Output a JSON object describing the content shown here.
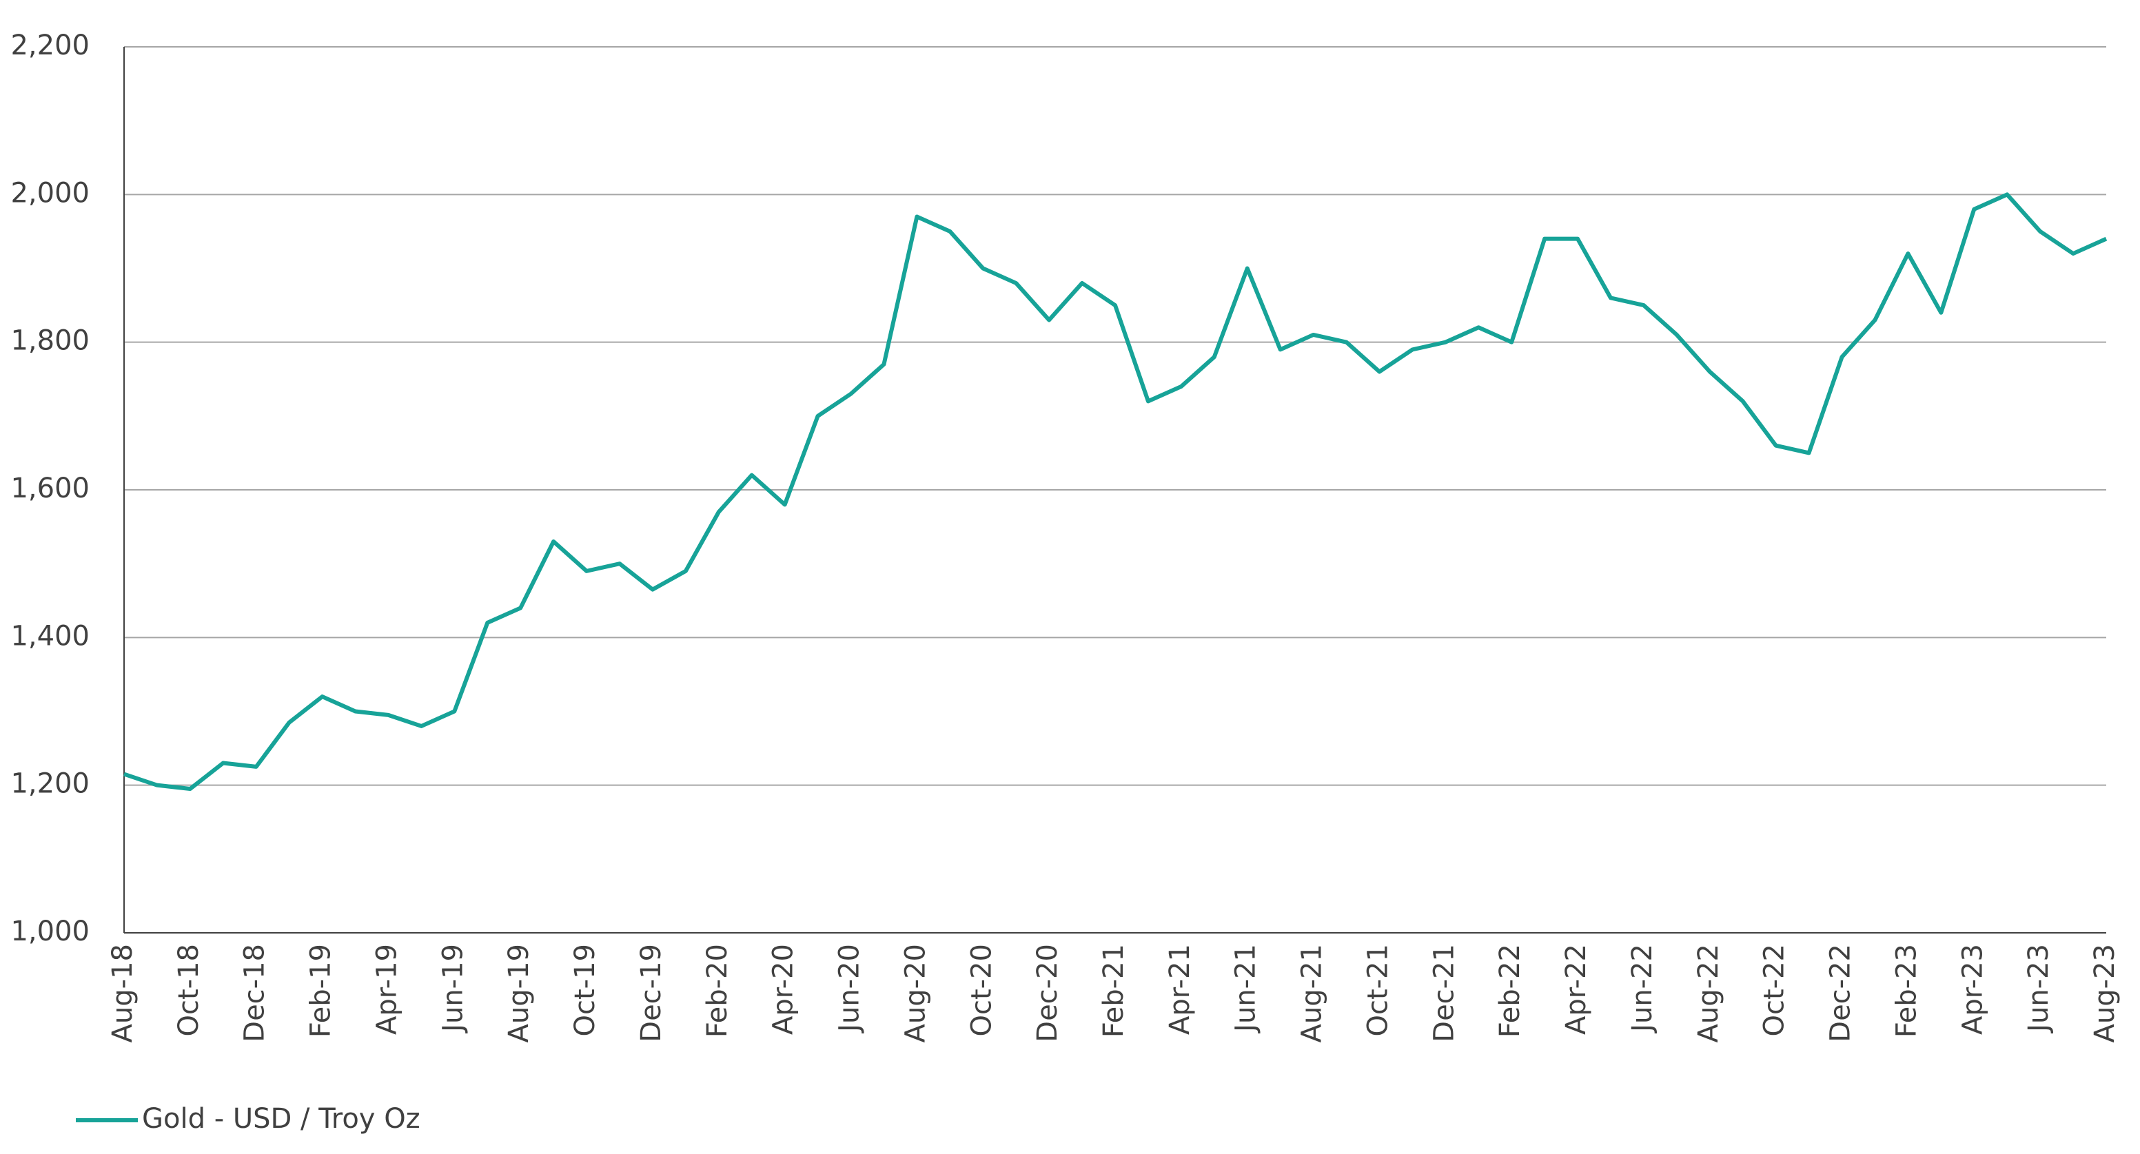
{
  "chart_data": {
    "type": "line",
    "categories": [
      "Aug-18",
      null,
      "Oct-18",
      null,
      "Dec-18",
      null,
      "Feb-19",
      null,
      "Apr-19",
      null,
      "Jun-19",
      null,
      "Aug-19",
      null,
      "Oct-19",
      null,
      "Dec-19",
      null,
      "Feb-20",
      null,
      "Apr-20",
      null,
      "Jun-20",
      null,
      "Aug-20",
      null,
      "Oct-20",
      null,
      "Dec-20",
      null,
      "Feb-21",
      null,
      "Apr-21",
      null,
      "Jun-21",
      null,
      "Aug-21",
      null,
      "Oct-21",
      null,
      "Dec-21",
      null,
      "Feb-22",
      null,
      "Apr-22",
      null,
      "Jun-22",
      null,
      "Aug-22",
      null,
      "Oct-22",
      null,
      "Dec-22",
      null,
      "Feb-23",
      null,
      "Apr-23",
      null,
      "Jun-23",
      null,
      "Aug-23"
    ],
    "series": [
      {
        "name": "Gold - USD / Troy Oz",
        "color": "#17a398",
        "values": [
          1215,
          1200,
          1195,
          1230,
          1225,
          1285,
          1320,
          1300,
          1295,
          1280,
          1300,
          1420,
          1440,
          1530,
          1490,
          1500,
          1465,
          1490,
          1570,
          1620,
          1580,
          1700,
          1730,
          1770,
          1970,
          1950,
          1900,
          1880,
          1830,
          1880,
          1850,
          1720,
          1740,
          1780,
          1900,
          1790,
          1810,
          1800,
          1760,
          1790,
          1800,
          1820,
          1800,
          1940,
          1940,
          1860,
          1850,
          1810,
          1760,
          1720,
          1660,
          1650,
          1780,
          1830,
          1920,
          1840,
          1980,
          2000,
          1950,
          1920,
          1940
        ]
      }
    ],
    "ylim": [
      1000,
      2200
    ],
    "yticks": [
      {
        "value": 1000,
        "label": "1,000"
      },
      {
        "value": 1200,
        "label": "1,200"
      },
      {
        "value": 1400,
        "label": "1,400"
      },
      {
        "value": 1600,
        "label": "1,600"
      },
      {
        "value": 1800,
        "label": "1,800"
      },
      {
        "value": 2000,
        "label": "2,000"
      },
      {
        "value": 2200,
        "label": "2,200"
      }
    ],
    "grid": true
  }
}
